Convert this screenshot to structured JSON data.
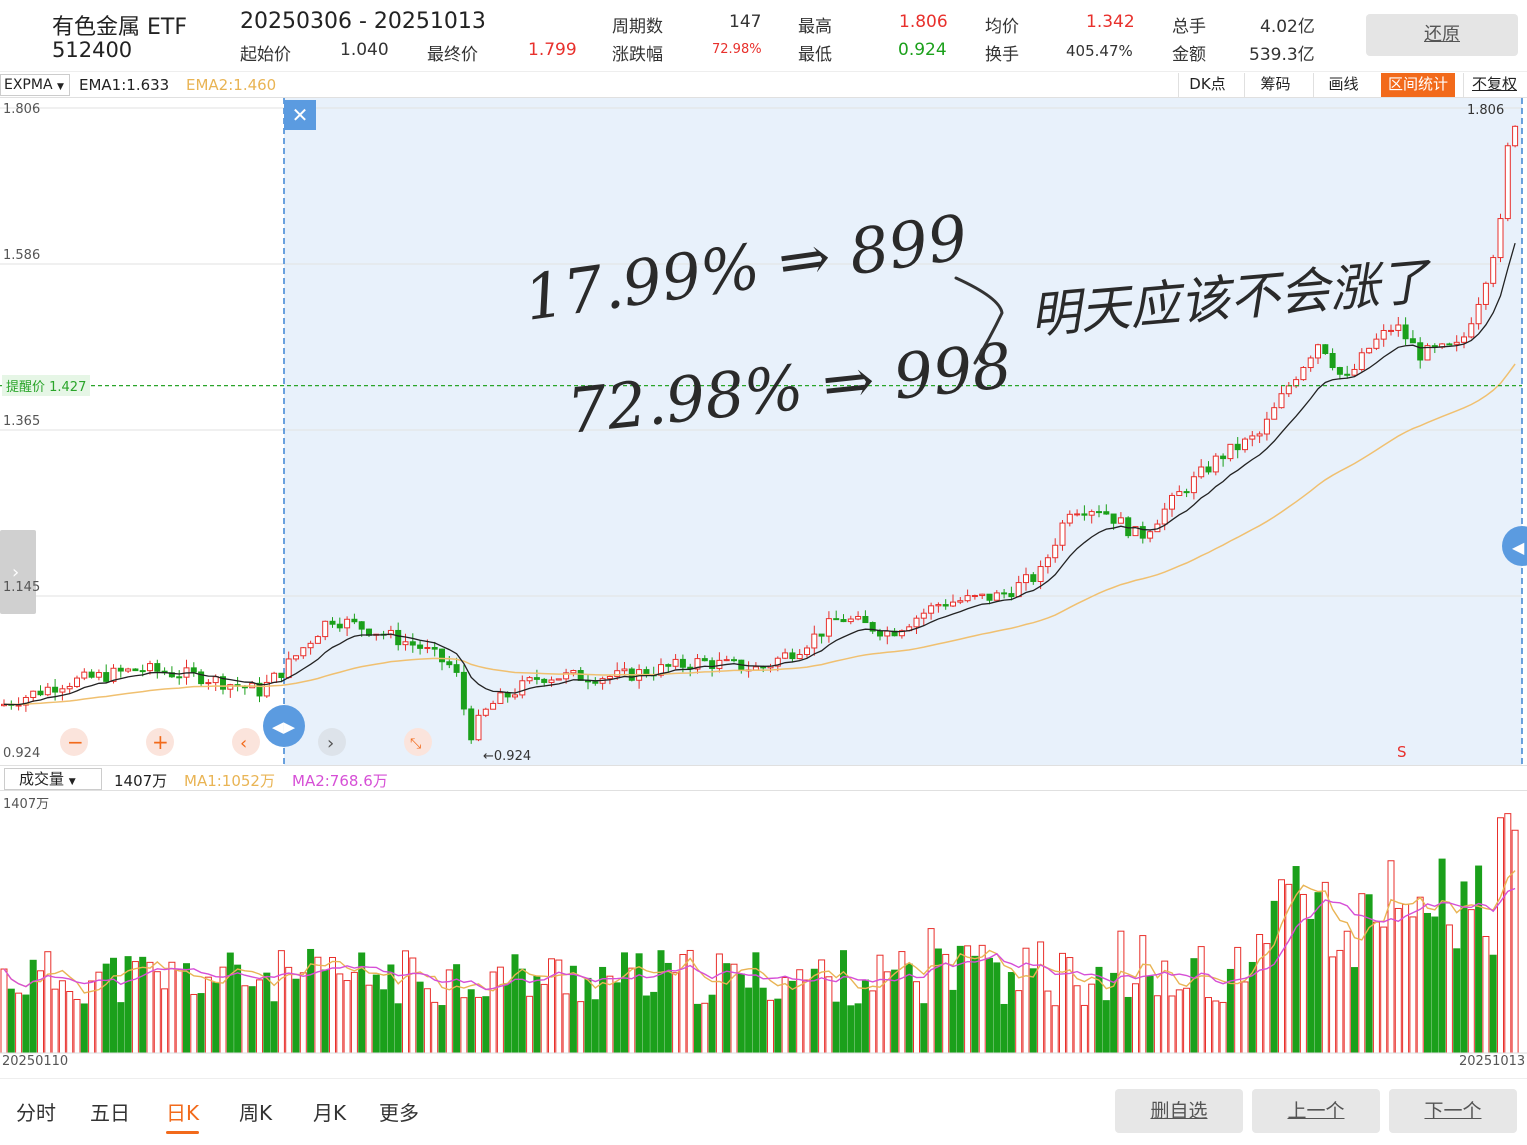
{
  "header": {
    "name": "有色金属 ETF",
    "code": "512400",
    "range": "20250306  - 20251013",
    "start_label": "起始价",
    "start_value": "1.040",
    "end_label": "最终价",
    "end_value": "1.799",
    "periods_label": "周期数",
    "periods_value": "147",
    "change_label": "涨跌幅",
    "change_value": "72.98%",
    "high_label": "最高",
    "high_value": "1.806",
    "low_label": "最低",
    "low_value": "0.924",
    "avg_label": "均价",
    "avg_value": "1.342",
    "turnover_label": "换手",
    "turnover_value": "405.47%",
    "vol_label": "总手",
    "vol_value": "4.02亿",
    "amount_label": "金额",
    "amount_value": "539.3亿",
    "restore_button": "还原"
  },
  "indicator_bar": {
    "selector": "EXPMA",
    "ema1": "EMA1:1.633",
    "ema2": "EMA2:1.460",
    "tools": [
      "DK点",
      "筹码",
      "画线",
      "区间统计",
      "不复权"
    ],
    "active_tool": "区间统计"
  },
  "price_chart": {
    "y_labels": [
      "1.806",
      "1.586",
      "1.365",
      "1.145",
      "0.924"
    ],
    "alert_label": "提醒价 1.427",
    "alert_price": 1.427,
    "high_marker": "1.806",
    "low_marker": "←0.924",
    "signal_label": "S",
    "close_symbol": "✕",
    "ymin": 0.924,
    "ymax": 1.806
  },
  "handwriting": {
    "line1": "17.99% ⇒ 899",
    "line2": "72.98% ⇒ 998",
    "note": "明天应该不会涨了"
  },
  "volume_bar": {
    "selector": "成交量",
    "vol": "1407万",
    "ma1": "MA1:1052万",
    "ma2": "MA2:768.6万"
  },
  "volume_chart": {
    "top_label": "1407万",
    "start_date": "20250110",
    "end_date": "20251013"
  },
  "nav": {
    "tabs": [
      "分时",
      "五日",
      "日K",
      "周K",
      "月K",
      "更多"
    ],
    "active_tab": "日K",
    "buttons": [
      "删自选",
      "上一个",
      "下一个"
    ]
  },
  "colors": {
    "up": "#e8302c",
    "down": "#1ba01b",
    "ema1": "#222222",
    "ema2": "#f0c070",
    "accent": "#f26a1b",
    "selection": "#e8f1fb",
    "alert": "#2aa52a"
  }
}
